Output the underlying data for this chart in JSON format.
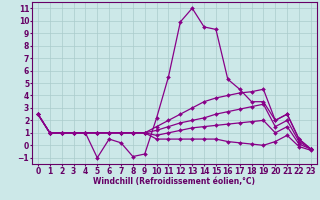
{
  "title": "",
  "xlabel": "Windchill (Refroidissement éolien,°C)",
  "xlim": [
    -0.5,
    23.5
  ],
  "ylim": [
    -1.5,
    11.5
  ],
  "xticks": [
    0,
    1,
    2,
    3,
    4,
    5,
    6,
    7,
    8,
    9,
    10,
    11,
    12,
    13,
    14,
    15,
    16,
    17,
    18,
    19,
    20,
    21,
    22,
    23
  ],
  "yticks": [
    -1,
    0,
    1,
    2,
    3,
    4,
    5,
    6,
    7,
    8,
    9,
    10,
    11
  ],
  "background_color": "#cce8e8",
  "grid_color": "#aacccc",
  "line_color": "#880088",
  "curves": [
    {
      "x": [
        0,
        1,
        2,
        3,
        4,
        5,
        6,
        7,
        8,
        9,
        10,
        11,
        12,
        13,
        14,
        15,
        16,
        17,
        18,
        19,
        20,
        21,
        22,
        23
      ],
      "y": [
        2.5,
        1.0,
        1.0,
        1.0,
        1.0,
        -1.0,
        0.5,
        0.2,
        -0.9,
        -0.7,
        2.2,
        5.5,
        9.9,
        11.0,
        9.5,
        9.3,
        5.3,
        4.5,
        3.5,
        3.5,
        2.0,
        2.5,
        0.5,
        -0.3
      ]
    },
    {
      "x": [
        0,
        1,
        2,
        3,
        4,
        5,
        6,
        7,
        8,
        9,
        10,
        11,
        12,
        13,
        14,
        15,
        16,
        17,
        18,
        19,
        20,
        21,
        22,
        23
      ],
      "y": [
        2.5,
        1.0,
        1.0,
        1.0,
        1.0,
        1.0,
        1.0,
        1.0,
        1.0,
        1.0,
        1.5,
        2.0,
        2.5,
        3.0,
        3.5,
        3.8,
        4.0,
        4.2,
        4.3,
        4.5,
        2.0,
        2.5,
        0.5,
        -0.3
      ]
    },
    {
      "x": [
        0,
        1,
        2,
        3,
        4,
        5,
        6,
        7,
        8,
        9,
        10,
        11,
        12,
        13,
        14,
        15,
        16,
        17,
        18,
        19,
        20,
        21,
        22,
        23
      ],
      "y": [
        2.5,
        1.0,
        1.0,
        1.0,
        1.0,
        1.0,
        1.0,
        1.0,
        1.0,
        1.0,
        1.2,
        1.5,
        1.8,
        2.0,
        2.2,
        2.5,
        2.7,
        2.9,
        3.1,
        3.3,
        1.5,
        2.0,
        0.3,
        -0.3
      ]
    },
    {
      "x": [
        0,
        1,
        2,
        3,
        4,
        5,
        6,
        7,
        8,
        9,
        10,
        11,
        12,
        13,
        14,
        15,
        16,
        17,
        18,
        19,
        20,
        21,
        22,
        23
      ],
      "y": [
        2.5,
        1.0,
        1.0,
        1.0,
        1.0,
        1.0,
        1.0,
        1.0,
        1.0,
        1.0,
        0.8,
        1.0,
        1.2,
        1.4,
        1.5,
        1.6,
        1.7,
        1.8,
        1.9,
        2.0,
        1.0,
        1.5,
        0.1,
        -0.3
      ]
    },
    {
      "x": [
        0,
        1,
        2,
        3,
        4,
        5,
        6,
        7,
        8,
        9,
        10,
        11,
        12,
        13,
        14,
        15,
        16,
        17,
        18,
        19,
        20,
        21,
        22,
        23
      ],
      "y": [
        2.5,
        1.0,
        1.0,
        1.0,
        1.0,
        1.0,
        1.0,
        1.0,
        1.0,
        1.0,
        0.5,
        0.5,
        0.5,
        0.5,
        0.5,
        0.5,
        0.3,
        0.2,
        0.1,
        0.0,
        0.3,
        0.8,
        -0.1,
        -0.4
      ]
    }
  ],
  "marker": "D",
  "markersize": 2.0,
  "linewidth": 0.9,
  "axis_color": "#660066",
  "tick_color": "#660066",
  "label_color": "#660066",
  "font_size": 5.5,
  "xlabel_fontsize": 5.5
}
